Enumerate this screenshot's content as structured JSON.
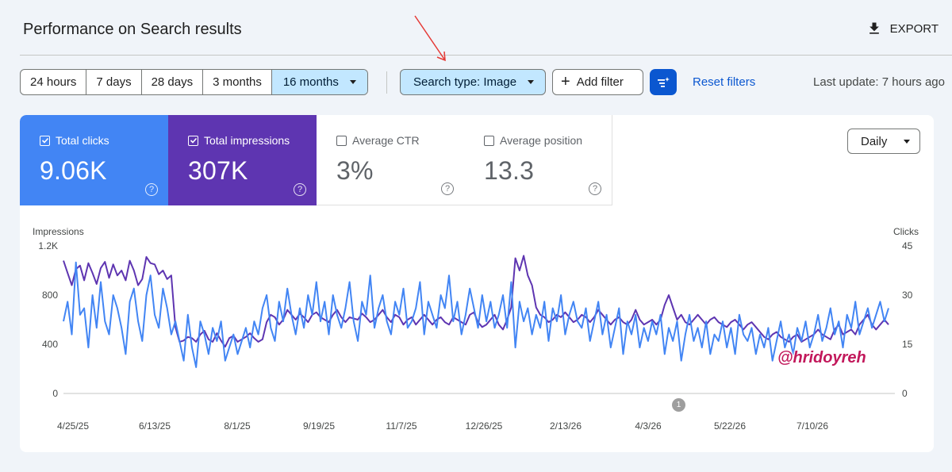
{
  "header": {
    "title": "Performance on Search results",
    "export_label": "EXPORT"
  },
  "filters": {
    "ranges": [
      "24 hours",
      "7 days",
      "28 days",
      "3 months",
      "16 months"
    ],
    "active_range": "16 months",
    "search_type": "Search type: Image",
    "add_filter": "Add filter",
    "reset": "Reset filters",
    "last_update": "Last update: 7 hours ago"
  },
  "metrics": {
    "clicks": {
      "label": "Total clicks",
      "value": "9.06K",
      "checked": true
    },
    "impressions": {
      "label": "Total impressions",
      "value": "307K",
      "checked": true
    },
    "ctr": {
      "label": "Average CTR",
      "value": "3%",
      "checked": false
    },
    "position": {
      "label": "Average position",
      "value": "13.3",
      "checked": false
    },
    "help": "?"
  },
  "granularity": "Daily",
  "watermark": "@hridoyreh",
  "annotation_count": "1",
  "colors": {
    "clicks": "#4285f4",
    "impressions": "#5e35b1",
    "accent": "#0b57d0",
    "chip": "#c2e7ff",
    "arrow": "#e53935"
  },
  "chart_data": {
    "type": "line",
    "left_axis_label": "Impressions",
    "right_axis_label": "Clicks",
    "left_ticks": [
      "1.2K",
      "800",
      "400",
      "0"
    ],
    "right_ticks": [
      "45",
      "30",
      "15",
      "0"
    ],
    "ylim_left": [
      0,
      1200
    ],
    "ylim_right": [
      0,
      45
    ],
    "x_ticks": [
      "4/25/25",
      "6/13/25",
      "8/1/25",
      "9/19/25",
      "11/7/25",
      "12/26/25",
      "2/13/26",
      "4/3/26",
      "5/22/26",
      "7/10/26"
    ],
    "x_range": [
      "4/25/25",
      "8/20/26"
    ],
    "series": [
      {
        "name": "Total impressions",
        "axis": "left",
        "color": "#5e35b1",
        "values": [
          1080,
          980,
          880,
          1010,
          1040,
          920,
          1060,
          980,
          890,
          1020,
          1070,
          940,
          1050,
          960,
          1000,
          920,
          1080,
          1000,
          880,
          930,
          1110,
          1060,
          1050,
          970,
          1000,
          930,
          960,
          540,
          420,
          430,
          460,
          450,
          420,
          480,
          510,
          440,
          420,
          490,
          430,
          380,
          450,
          470,
          420,
          440,
          460,
          490,
          450,
          420,
          440,
          580,
          640,
          620,
          560,
          600,
          680,
          640,
          600,
          650,
          620,
          580,
          640,
          660,
          620,
          600,
          580,
          640,
          680,
          620,
          580,
          620,
          610,
          600,
          650,
          620,
          580,
          600,
          640,
          680,
          620,
          580,
          640,
          620,
          560,
          600,
          620,
          560,
          600,
          640,
          600,
          560,
          600,
          620,
          580,
          560,
          620,
          600,
          580,
          560,
          640,
          660,
          580,
          540,
          560,
          600,
          640,
          560,
          520,
          600,
          700,
          1100,
          1000,
          1120,
          960,
          880,
          700,
          640,
          620,
          580,
          600,
          640,
          620,
          660,
          620,
          580,
          600,
          640,
          620,
          580,
          620,
          680,
          640,
          600,
          560,
          600,
          620,
          580,
          560,
          600,
          680,
          600,
          560,
          580,
          600,
          560,
          600,
          720,
          800,
          700,
          600,
          640,
          580,
          560,
          600,
          640,
          600,
          560,
          600,
          620,
          580,
          560,
          540,
          580,
          600,
          560,
          520,
          560,
          580,
          540,
          500,
          460,
          440,
          480,
          500,
          460,
          440,
          420,
          460,
          480,
          420,
          440,
          460,
          480,
          520,
          480,
          460,
          440,
          520,
          560,
          480,
          500,
          520,
          480,
          560,
          600,
          640,
          560,
          520,
          560,
          600,
          560
        ],
        "note": "Approximate daily values read from the chart"
      },
      {
        "name": "Total clicks",
        "axis": "right",
        "color": "#4285f4",
        "values": [
          22,
          28,
          18,
          40,
          24,
          26,
          14,
          30,
          20,
          34,
          22,
          18,
          30,
          26,
          20,
          12,
          28,
          32,
          22,
          16,
          30,
          36,
          24,
          20,
          32,
          26,
          18,
          22,
          16,
          10,
          24,
          14,
          8,
          22,
          18,
          12,
          20,
          16,
          22,
          10,
          14,
          18,
          12,
          16,
          20,
          14,
          22,
          18,
          26,
          30,
          20,
          16,
          28,
          22,
          32,
          24,
          18,
          26,
          20,
          30,
          24,
          34,
          22,
          28,
          18,
          30,
          24,
          20,
          26,
          34,
          22,
          16,
          28,
          24,
          36,
          20,
          26,
          30,
          22,
          18,
          28,
          24,
          32,
          20,
          22,
          26,
          34,
          18,
          28,
          24,
          20,
          30,
          26,
          36,
          22,
          28,
          18,
          24,
          32,
          26,
          20,
          30,
          22,
          28,
          20,
          24,
          30,
          20,
          34,
          14,
          28,
          22,
          26,
          18,
          24,
          20,
          28,
          16,
          26,
          22,
          30,
          18,
          24,
          28,
          22,
          20,
          26,
          16,
          22,
          28,
          18,
          24,
          14,
          20,
          26,
          12,
          22,
          18,
          24,
          14,
          20,
          16,
          22,
          18,
          24,
          12,
          20,
          16,
          22,
          10,
          18,
          24,
          16,
          20,
          14,
          22,
          12,
          18,
          16,
          22,
          14,
          20,
          12,
          24,
          18,
          16,
          20,
          12,
          18,
          14,
          20,
          10,
          16,
          22,
          14,
          18,
          12,
          20,
          16,
          22,
          14,
          18,
          24,
          16,
          20,
          26,
          18,
          22,
          14,
          24,
          20,
          28,
          18,
          22,
          26,
          20,
          24,
          28,
          22,
          26
        ],
        "note": "Approximate daily values read from the chart"
      }
    ],
    "grid": false,
    "legend": "none"
  }
}
